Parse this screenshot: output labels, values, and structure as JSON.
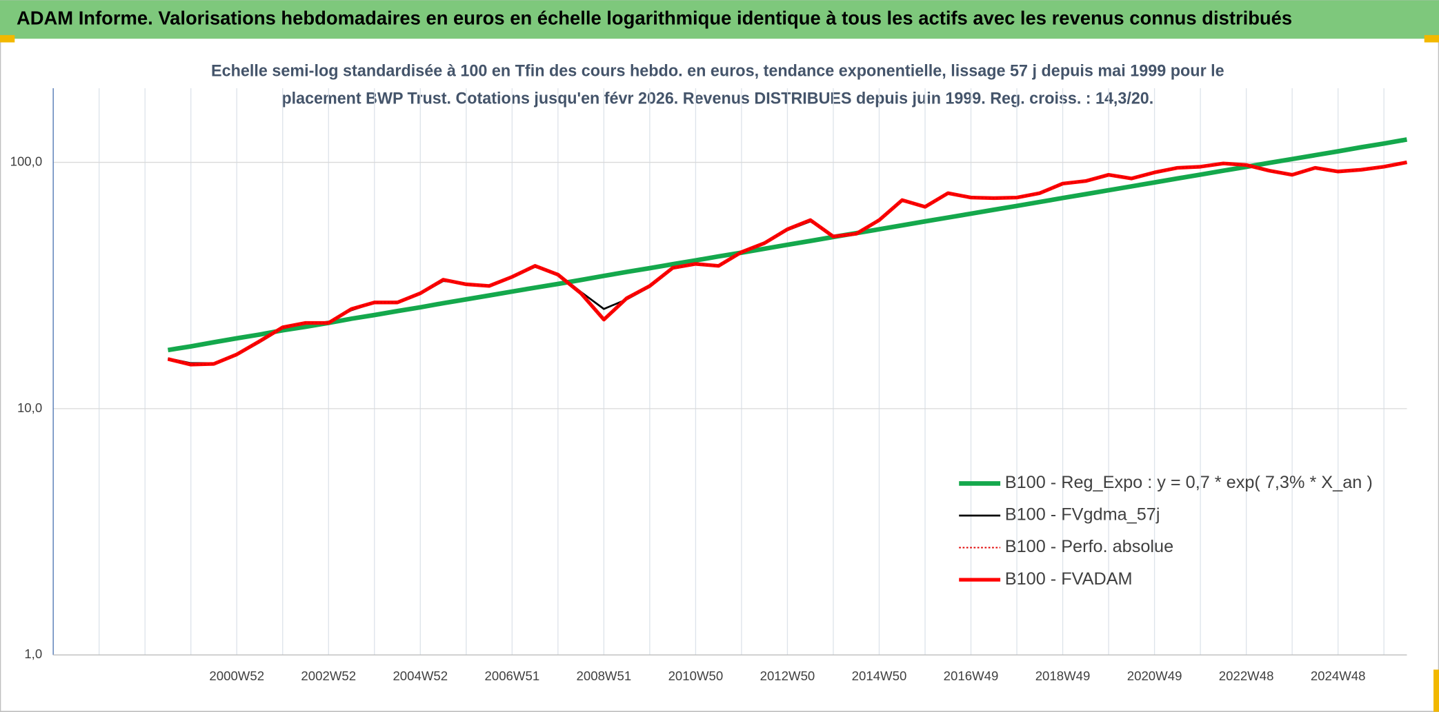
{
  "chart_data": {
    "type": "line",
    "title": "ADAM Informe. Valorisations hebdomadaires en euros en échelle logarithmique identique à tous les actifs avec les revenus connus distribués",
    "subtitle": [
      "Echelle semi-log standardisée à 100 en Tfin des cours hebdo. en euros, tendance exponentielle, lissage 57 j depuis mai 1999 pour le",
      "placement BWP Trust. Cotations jusqu'en févr 2026. Revenus DISTRIBUES depuis juin 1999. Reg. croiss. : 14,3/20."
    ],
    "log_y": true,
    "grid": true,
    "ylim": [
      1,
      200
    ],
    "yticks": [
      {
        "value": 1,
        "label": "1,0"
      },
      {
        "value": 10,
        "label": "10,0"
      },
      {
        "value": 100,
        "label": "100,0"
      }
    ],
    "categories": [
      null,
      null,
      null,
      null,
      null,
      null,
      null,
      null,
      "2000W52",
      null,
      null,
      null,
      "2002W52",
      null,
      null,
      null,
      "2004W52",
      null,
      null,
      null,
      "2006W51",
      null,
      null,
      null,
      "2008W51",
      null,
      null,
      null,
      "2010W50",
      null,
      null,
      null,
      "2012W50",
      null,
      null,
      null,
      "2014W50",
      null,
      null,
      null,
      "2016W49",
      null,
      null,
      null,
      "2018W49",
      null,
      null,
      null,
      "2020W49",
      null,
      null,
      null,
      "2022W48",
      null,
      null,
      null,
      "2024W48",
      null,
      null,
      null
    ],
    "series": [
      {
        "name": "B100 - Reg_Expo : y = 0,7 * exp( 7,3% *  X_an )",
        "color": "#14a84c",
        "width": 5,
        "dash": "none",
        "values": [
          null,
          null,
          null,
          null,
          null,
          17.3,
          17.9,
          18.6,
          19.3,
          20.0,
          20.8,
          21.5,
          22.3,
          23.2,
          24.0,
          24.9,
          25.8,
          26.8,
          27.8,
          28.8,
          29.9,
          31.0,
          32.1,
          33.3,
          34.6,
          35.9,
          37.2,
          38.6,
          40.0,
          41.5,
          43.0,
          44.6,
          46.3,
          48.0,
          49.8,
          51.6,
          53.5,
          55.5,
          57.6,
          59.7,
          61.9,
          64.2,
          66.6,
          69.1,
          71.7,
          74.3,
          77.1,
          79.9,
          82.9,
          86.0,
          89.2,
          92.5,
          95.9,
          99.5,
          103.2,
          107.0,
          110.9,
          115.1,
          119.3,
          123.8
        ]
      },
      {
        "name": "B100 - FVgdma_57j",
        "color": "#000000",
        "width": 2,
        "dash": "none",
        "values": [
          null,
          null,
          null,
          null,
          null,
          16.0,
          15.3,
          15.3,
          16.5,
          18.6,
          21.2,
          22.2,
          22.5,
          25.1,
          26.9,
          27.2,
          29.2,
          33.0,
          32.2,
          31.6,
          34.1,
          37.6,
          35.3,
          29.8,
          25.4,
          27.8,
          31.2,
          37.0,
          38.5,
          38.2,
          42.8,
          46.8,
          53.0,
          57.6,
          50.4,
          51.0,
          57.8,
          69.6,
          66.4,
          74.5,
          72.6,
          71.4,
          72.1,
          74.6,
          81.5,
          84.1,
          88.5,
          86.5,
          90.6,
          94.6,
          96.2,
          98.6,
          97.9,
          92.8,
          89.4,
          94.6,
          92.0,
          93.0,
          95.7,
          99.6
        ]
      },
      {
        "name": "B100 - Perfo. absolue",
        "color": "#e00000",
        "width": 1.5,
        "dash": "2 2",
        "values": [
          null,
          null,
          null,
          null,
          null,
          15.9,
          15.1,
          15.2,
          16.6,
          18.8,
          21.4,
          22.3,
          22.3,
          25.4,
          27.0,
          27.0,
          29.4,
          33.4,
          32.0,
          31.5,
          34.3,
          38.0,
          35.0,
          29.4,
          23.0,
          28.1,
          31.5,
          37.3,
          38.7,
          38.0,
          43.2,
          47.0,
          53.5,
          58.3,
          50.0,
          51.3,
          58.3,
          70.3,
          66.0,
          75.0,
          72.0,
          71.6,
          72.0,
          75.0,
          82.0,
          84.0,
          89.0,
          86.0,
          91.0,
          95.0,
          96.0,
          99.0,
          97.6,
          92.5,
          89.0,
          95.0,
          91.8,
          93.3,
          96.0,
          100.0
        ]
      },
      {
        "name": "B100 - FVADAM",
        "color": "#ff0000",
        "width": 4,
        "dash": "none",
        "values": [
          null,
          null,
          null,
          null,
          null,
          15.9,
          15.1,
          15.2,
          16.6,
          18.8,
          21.4,
          22.3,
          22.3,
          25.4,
          27.0,
          27.0,
          29.4,
          33.4,
          32.0,
          31.5,
          34.3,
          38.0,
          35.0,
          29.4,
          23.0,
          28.1,
          31.5,
          37.3,
          38.7,
          38.0,
          43.2,
          47.0,
          53.5,
          58.3,
          50.0,
          51.3,
          58.3,
          70.3,
          66.0,
          75.0,
          72.0,
          71.6,
          72.0,
          75.0,
          82.0,
          84.0,
          89.0,
          86.0,
          91.0,
          95.0,
          96.0,
          99.0,
          97.6,
          92.5,
          89.0,
          95.0,
          91.8,
          93.3,
          96.0,
          100.0
        ]
      }
    ]
  }
}
